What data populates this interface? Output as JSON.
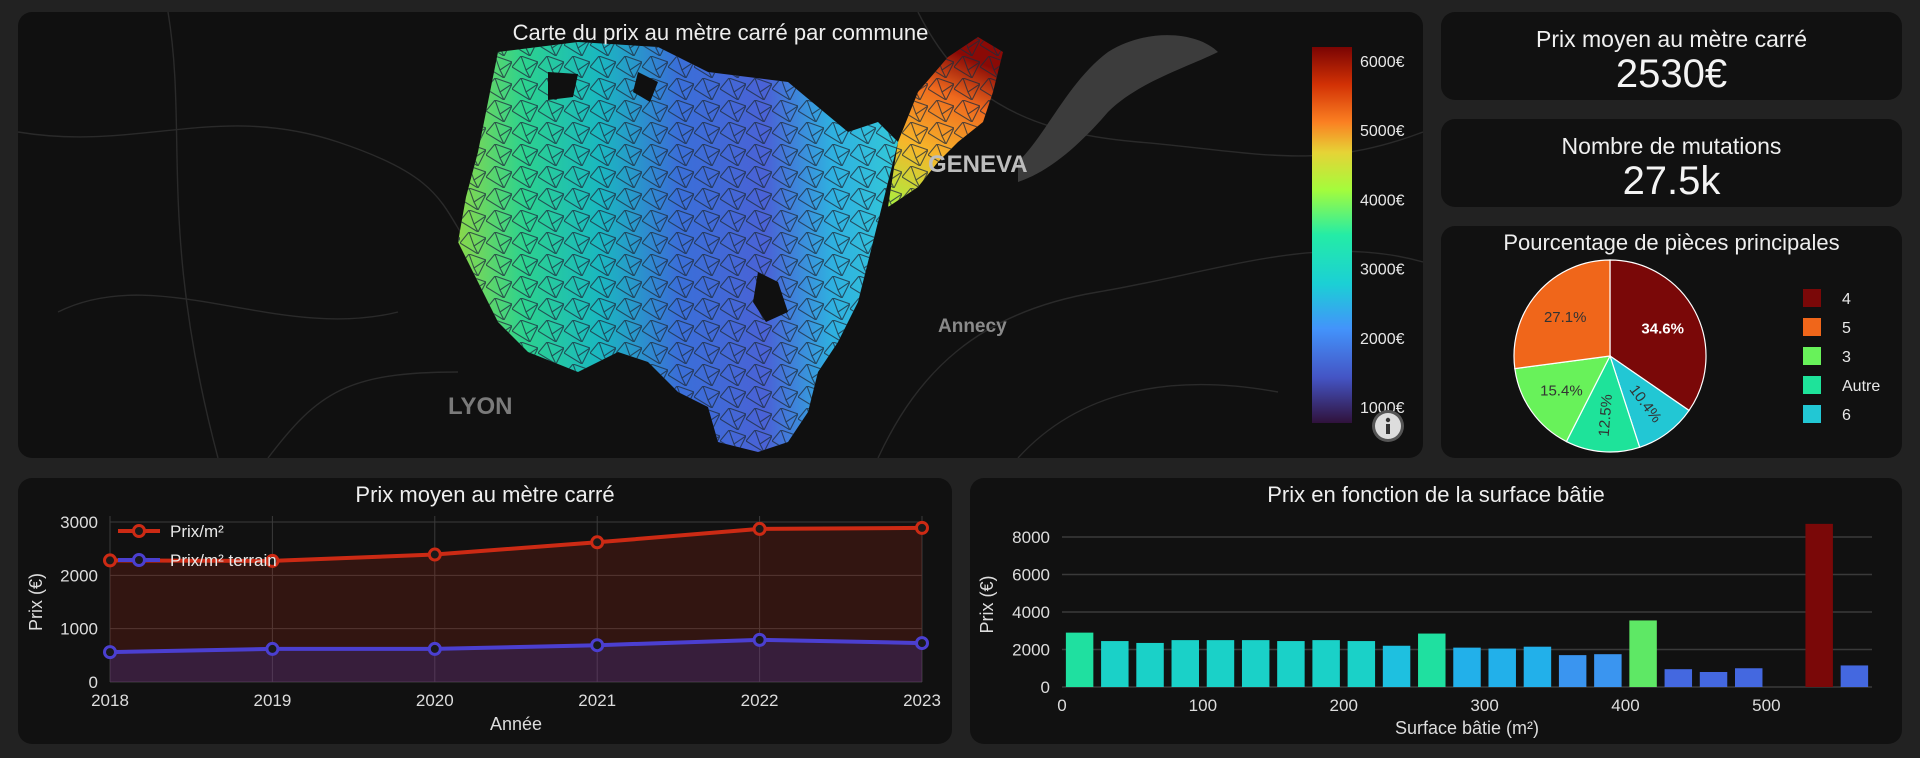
{
  "map": {
    "title": "Carte du prix au mètre carré par commune",
    "city_labels": [
      "GENEVA",
      "Annecy",
      "LYON"
    ],
    "colorbar_ticks": [
      "6000€",
      "5000€",
      "4000€",
      "3000€",
      "2000€",
      "1000€"
    ],
    "info_icon": "info-icon"
  },
  "kpis": {
    "price_label": "Prix moyen au mètre carré",
    "price_value": "2530€",
    "mutations_label": "Nombre de mutations",
    "mutations_value": "27.5k"
  },
  "chart_data": [
    {
      "type": "line",
      "title": "Prix moyen au mètre carré",
      "xlabel": "Année",
      "ylabel": "Prix (€)",
      "x": [
        2018,
        2019,
        2020,
        2021,
        2022,
        2023
      ],
      "ylim": [
        0,
        3000
      ],
      "yticks": [
        0,
        1000,
        2000,
        3000
      ],
      "grid": true,
      "legend_position": "top-left",
      "series": [
        {
          "name": "Prix/m²",
          "color": "#cc2a14",
          "values": [
            2280,
            2270,
            2390,
            2620,
            2870,
            2890
          ]
        },
        {
          "name": "Prix/m² terrain",
          "color": "#4b3fd0",
          "values": [
            560,
            620,
            620,
            690,
            790,
            730
          ]
        }
      ]
    },
    {
      "type": "bar",
      "title": "Prix en fonction de la surface bâtie",
      "xlabel": "Surface bâtie (m²)",
      "ylabel": "Prix (€)",
      "xlim": [
        0,
        575
      ],
      "ylim": [
        0,
        8800
      ],
      "xticks": [
        0,
        100,
        200,
        300,
        400,
        500
      ],
      "yticks": [
        0,
        2000,
        4000,
        6000,
        8000
      ],
      "bin_width": 25,
      "x": [
        12.5,
        37.5,
        62.5,
        87.5,
        112.5,
        137.5,
        162.5,
        187.5,
        212.5,
        237.5,
        262.5,
        287.5,
        312.5,
        337.5,
        362.5,
        387.5,
        412.5,
        437.5,
        462.5,
        487.5,
        512.5,
        537.5,
        562.5
      ],
      "values": [
        2900,
        2450,
        2350,
        2500,
        2500,
        2500,
        2450,
        2500,
        2450,
        2200,
        2850,
        2100,
        2050,
        2150,
        1700,
        1750,
        3550,
        950,
        800,
        1000,
        0,
        8700,
        1150
      ],
      "colors": [
        "#1fe0a0",
        "#1ad1c8",
        "#1ad1c8",
        "#1ad1c8",
        "#1ad1c8",
        "#1ad1c8",
        "#1ad1c8",
        "#1ad1c8",
        "#1ad1c8",
        "#1ec0e0",
        "#1fe0a0",
        "#22b0ea",
        "#22b0ea",
        "#22b0ea",
        "#3a95f0",
        "#3a95f0",
        "#5ee865",
        "#4468e0",
        "#4468e0",
        "#4468e0",
        "#4468e0",
        "#7a0808",
        "#4468e0"
      ]
    },
    {
      "type": "pie",
      "title": "Pourcentage de pièces principales",
      "legend_position": "right",
      "slices": [
        {
          "label": "4",
          "value": 34.6,
          "color": "#7a0808",
          "text": "34.6%"
        },
        {
          "label": "6",
          "value": 10.4,
          "color": "#22c7d4",
          "text": "10.4%"
        },
        {
          "label": "Autre",
          "value": 12.5,
          "color": "#1ee39a",
          "text": "12.5%"
        },
        {
          "label": "3",
          "value": 15.4,
          "color": "#68f25a",
          "text": "15.4%"
        },
        {
          "label": "5",
          "value": 27.1,
          "color": "#f0661a",
          "text": "27.1%"
        }
      ],
      "legend_order": [
        "4",
        "5",
        "3",
        "Autre",
        "6"
      ]
    }
  ]
}
